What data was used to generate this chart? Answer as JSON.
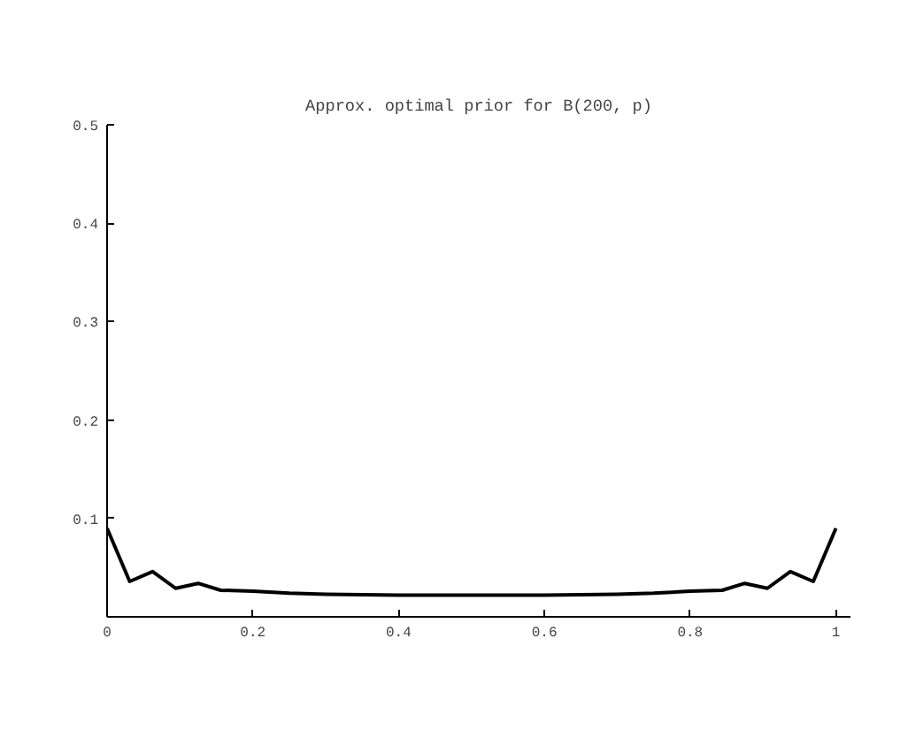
{
  "chart_data": {
    "type": "line",
    "title": "Approx. optimal prior for B(200, p)",
    "x": [
      0,
      0.031,
      0.0625,
      0.094,
      0.125,
      0.156,
      0.2,
      0.25,
      0.3,
      0.4,
      0.5,
      0.6,
      0.7,
      0.75,
      0.8,
      0.844,
      0.875,
      0.906,
      0.9375,
      0.969,
      1
    ],
    "values": [
      0.09,
      0.036,
      0.046,
      0.029,
      0.034,
      0.027,
      0.026,
      0.024,
      0.023,
      0.022,
      0.022,
      0.022,
      0.023,
      0.024,
      0.026,
      0.027,
      0.034,
      0.029,
      0.046,
      0.036,
      0.09
    ],
    "color": "#000000",
    "marker": "none",
    "line_style": "solid",
    "grid": false,
    "xlim": [
      0,
      1.02
    ],
    "ylim": [
      0,
      0.5
    ],
    "xticks": [
      0,
      0.2,
      0.4,
      0.6,
      0.8,
      1
    ],
    "yticks": [
      0.1,
      0.2,
      0.3,
      0.4,
      0.5
    ]
  }
}
